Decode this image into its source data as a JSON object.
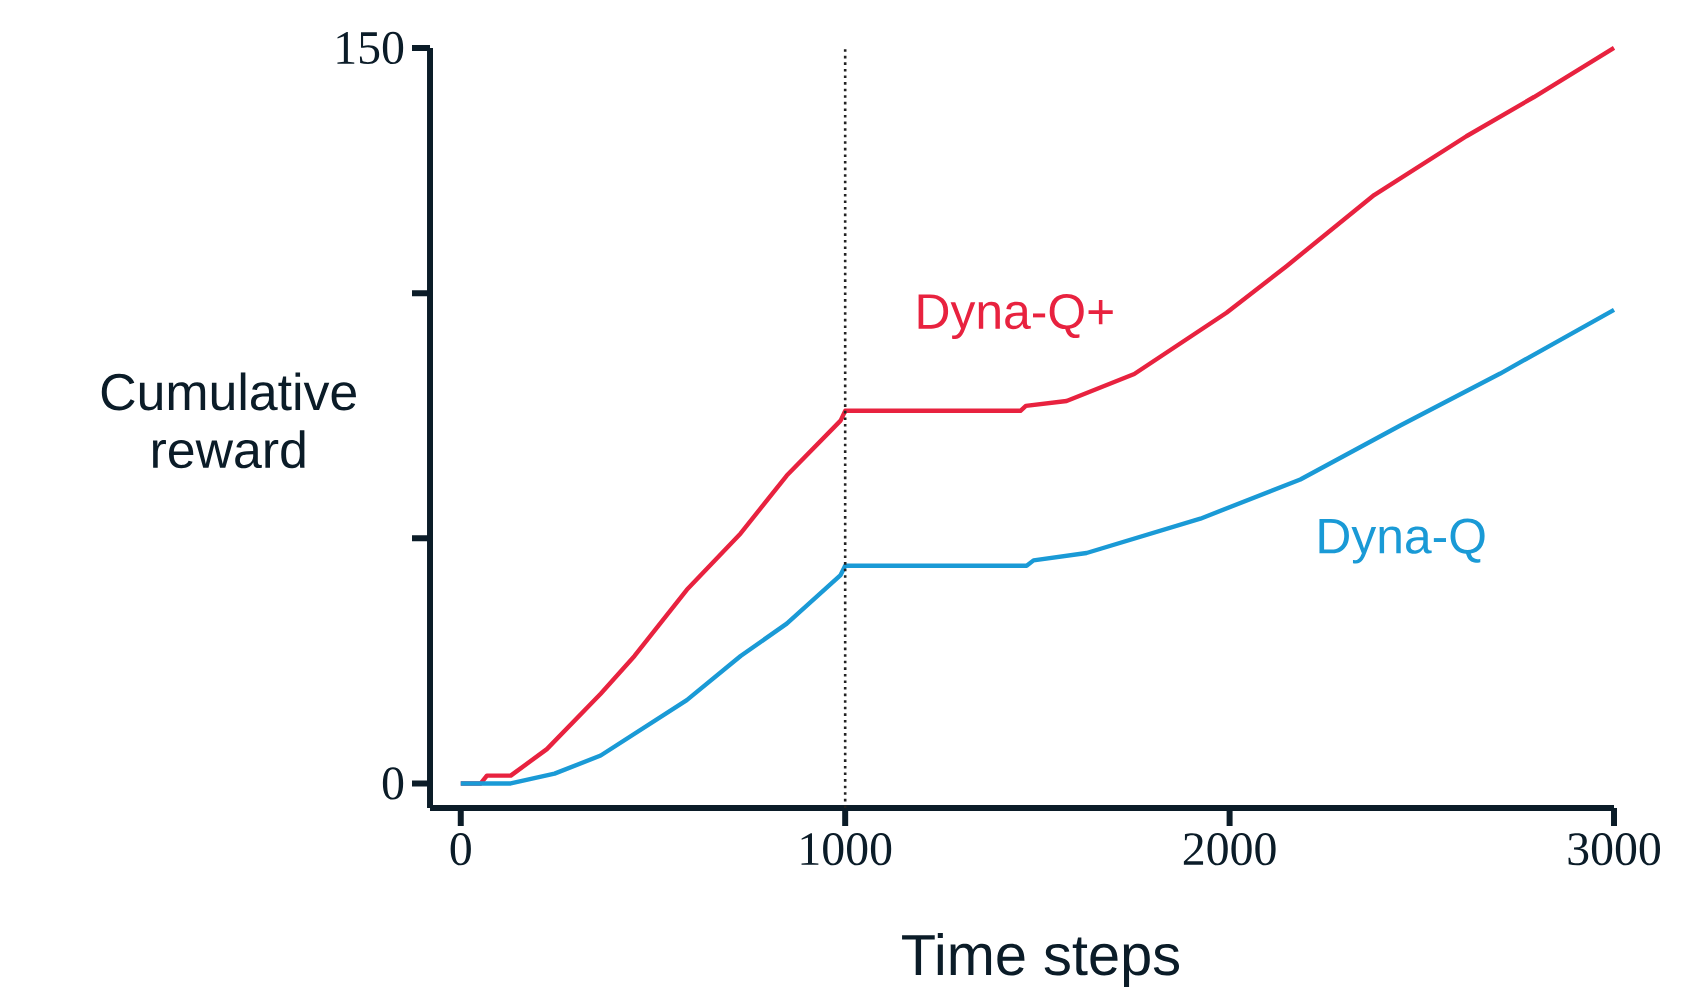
{
  "chart_data": {
    "type": "line",
    "xlabel": "Time steps",
    "ylabel": "Cumulative reward",
    "xlim": [
      -80,
      3000
    ],
    "ylim": [
      -5,
      150
    ],
    "xticks": [
      0,
      1000,
      2000,
      3000
    ],
    "yticks": [
      0,
      {
        "value": 50,
        "label": null
      },
      {
        "value": 100,
        "label": null
      },
      150
    ],
    "ref_lines": [
      {
        "axis": "x",
        "value": 1000,
        "color": "#222222",
        "line_style": "dotted"
      }
    ],
    "series": [
      {
        "name": "Dyna-Q+",
        "color": "#e8223f",
        "x": [
          0,
          52,
          68,
          130,
          224,
          364,
          452,
          588,
          728,
          848,
          988,
          1000,
          1456,
          1470,
          1576,
          1752,
          1992,
          2148,
          2376,
          2616,
          2792,
          3000
        ],
        "values": [
          0,
          0,
          1.6,
          1.6,
          7,
          18.3,
          26,
          39.5,
          51,
          62.8,
          74,
          76,
          76,
          77,
          78,
          83.5,
          96,
          105.5,
          120,
          132,
          140,
          150
        ]
      },
      {
        "name": "Dyna-Q",
        "color": "#1a9ad6",
        "x": [
          0,
          130,
          244,
          364,
          588,
          728,
          848,
          988,
          1000,
          1472,
          1490,
          1628,
          1924,
          2184,
          2444,
          2704,
          3000
        ],
        "values": [
          0,
          0,
          2,
          5.7,
          17,
          26,
          32.6,
          42.5,
          44.4,
          44.4,
          45.5,
          47,
          54,
          62,
          73,
          83.6,
          96.6
        ]
      }
    ]
  }
}
